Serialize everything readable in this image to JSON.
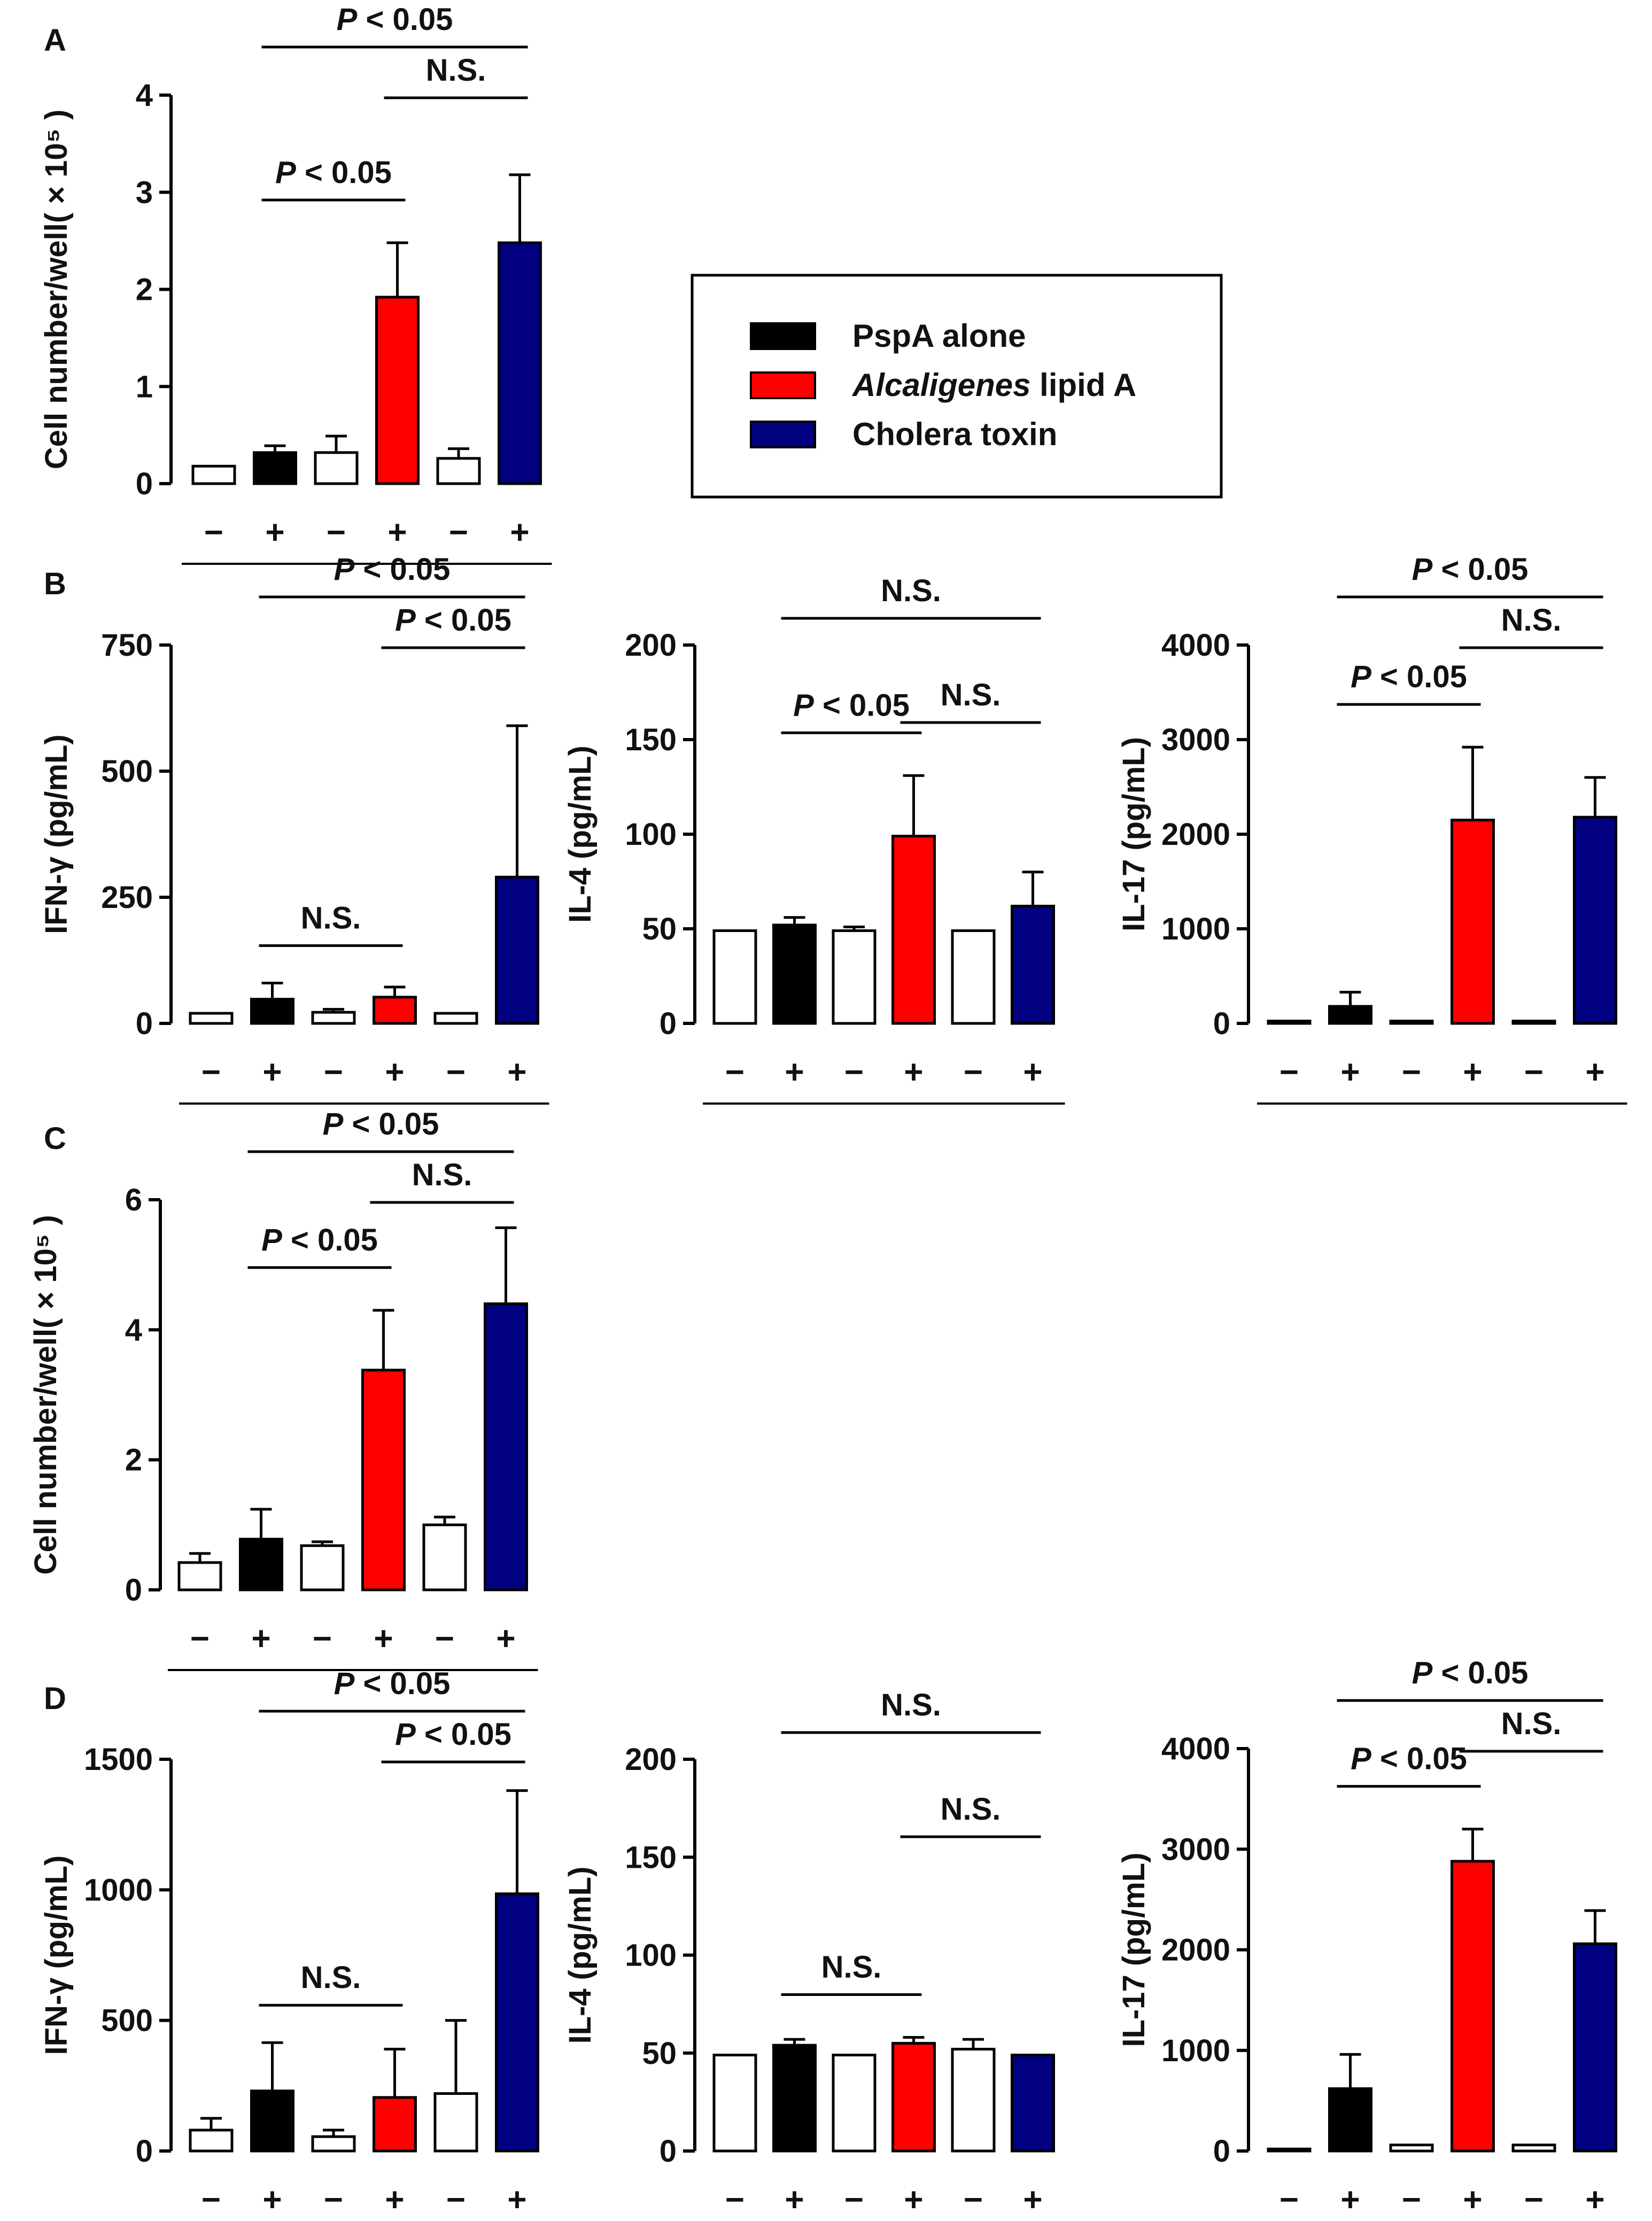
{
  "colors": {
    "control": "#ffffff",
    "PspA alone": "#000000",
    "Alcaligenes lipid A": "#ff0000",
    "Cholera toxin": "#000080"
  },
  "legend": [
    {
      "label": "PspA  alone",
      "color_key": "PspA alone",
      "italic_part": ""
    },
    {
      "label": " lipid A",
      "color_key": "Alcaligenes lipid A",
      "italic_part": "Alcaligenes"
    },
    {
      "label": "Cholera toxin",
      "color_key": "Cholera toxin",
      "italic_part": ""
    }
  ],
  "chart_data": [
    {
      "panel": "A",
      "type": "bar",
      "ylabel": "Cell number/well( × 10⁵ )",
      "ylim": [
        0,
        4
      ],
      "yticks": [
        0,
        1,
        2,
        3,
        4
      ],
      "categories": [
        "−",
        "+",
        "−",
        "+",
        "−",
        "+"
      ],
      "series": [
        "control",
        "PspA alone",
        "control",
        "Alcaligenes lipid A",
        "control",
        "Cholera toxin"
      ],
      "values": [
        0.18,
        0.32,
        0.32,
        1.92,
        0.26,
        2.48
      ],
      "errors": [
        0.0,
        0.07,
        0.17,
        0.56,
        0.1,
        0.7
      ],
      "significance": [
        {
          "from": 1,
          "to": 5,
          "text": "P < 0.05"
        },
        {
          "from": 3,
          "to": 5,
          "text": "N.S."
        },
        {
          "from": 1,
          "to": 3,
          "text": "P < 0.05"
        }
      ]
    },
    {
      "panel": "B",
      "type": "bar",
      "ylabel": "IFN-γ (pg/mL)",
      "ylim": [
        0,
        750
      ],
      "yticks": [
        0,
        250,
        500,
        750
      ],
      "categories": [
        "−",
        "+",
        "−",
        "+",
        "−",
        "+"
      ],
      "series": [
        "control",
        "PspA alone",
        "control",
        "Alcaligenes lipid A",
        "control",
        "Cholera toxin"
      ],
      "values": [
        20,
        48,
        22,
        52,
        20,
        290
      ],
      "errors": [
        0,
        32,
        6,
        20,
        0,
        300
      ],
      "significance": [
        {
          "from": 1,
          "to": 5,
          "text": "P < 0.05"
        },
        {
          "from": 3,
          "to": 5,
          "text": "P < 0.05"
        },
        {
          "from": 1,
          "to": 3,
          "text": "N.S."
        }
      ]
    },
    {
      "panel": "",
      "type": "bar",
      "ylabel": "IL-4 (pg/mL)",
      "ylim": [
        0,
        200
      ],
      "yticks": [
        0,
        50,
        100,
        150,
        200
      ],
      "categories": [
        "−",
        "+",
        "−",
        "+",
        "−",
        "+"
      ],
      "series": [
        "control",
        "PspA alone",
        "control",
        "Alcaligenes lipid A",
        "control",
        "Cholera toxin"
      ],
      "values": [
        49,
        52,
        49,
        99,
        49,
        62
      ],
      "errors": [
        0,
        4,
        2,
        32,
        0,
        18
      ],
      "significance": [
        {
          "from": 1,
          "to": 5,
          "text": "N.S."
        },
        {
          "from": 3,
          "to": 5,
          "text": "N.S."
        },
        {
          "from": 1,
          "to": 3,
          "text": "P < 0.05"
        }
      ]
    },
    {
      "panel": "",
      "type": "bar",
      "ylabel": "IL-17 (pg/mL)",
      "ylim": [
        0,
        4000
      ],
      "yticks": [
        0,
        1000,
        2000,
        3000,
        4000
      ],
      "categories": [
        "−",
        "+",
        "−",
        "+",
        "−",
        "+"
      ],
      "series": [
        "control",
        "PspA alone",
        "control",
        "Alcaligenes lipid A",
        "control",
        "Cholera toxin"
      ],
      "values": [
        25,
        180,
        25,
        2150,
        25,
        2180
      ],
      "errors": [
        0,
        150,
        0,
        770,
        0,
        420
      ],
      "significance": [
        {
          "from": 1,
          "to": 5,
          "text": "P < 0.05"
        },
        {
          "from": 3,
          "to": 5,
          "text": "N.S."
        },
        {
          "from": 1,
          "to": 3,
          "text": "P < 0.05"
        }
      ]
    },
    {
      "panel": "C",
      "type": "bar",
      "ylabel": "Cell number/well( × 10⁵ )",
      "ylim": [
        0,
        6
      ],
      "yticks": [
        0,
        2,
        4,
        6
      ],
      "categories": [
        "−",
        "+",
        "−",
        "+",
        "−",
        "+"
      ],
      "series": [
        "control",
        "PspA alone",
        "control",
        "Alcaligenes lipid A",
        "control",
        "Cholera toxin"
      ],
      "values": [
        0.42,
        0.78,
        0.68,
        3.38,
        1.0,
        4.4
      ],
      "errors": [
        0.14,
        0.46,
        0.06,
        0.92,
        0.12,
        1.17
      ],
      "significance": [
        {
          "from": 1,
          "to": 5,
          "text": "P < 0.05"
        },
        {
          "from": 3,
          "to": 5,
          "text": "N.S."
        },
        {
          "from": 1,
          "to": 3,
          "text": "P < 0.05"
        }
      ]
    },
    {
      "panel": "D",
      "type": "bar",
      "ylabel": "IFN-γ (pg/mL)",
      "ylim": [
        0,
        1500
      ],
      "yticks": [
        0,
        500,
        1000,
        1500
      ],
      "categories": [
        "−",
        "+",
        "−",
        "+",
        "−",
        "+"
      ],
      "series": [
        "control",
        "PspA alone",
        "control",
        "Alcaligenes lipid A",
        "control",
        "Cholera toxin"
      ],
      "values": [
        80,
        230,
        55,
        205,
        220,
        985
      ],
      "errors": [
        45,
        185,
        25,
        185,
        280,
        395
      ],
      "significance": [
        {
          "from": 1,
          "to": 5,
          "text": "P < 0.05"
        },
        {
          "from": 3,
          "to": 5,
          "text": "P < 0.05"
        },
        {
          "from": 1,
          "to": 3,
          "text": "N.S."
        }
      ]
    },
    {
      "panel": "",
      "type": "bar",
      "ylabel": "IL-4 (pg/mL)",
      "ylim": [
        0,
        200
      ],
      "yticks": [
        0,
        50,
        100,
        150,
        200
      ],
      "categories": [
        "−",
        "+",
        "−",
        "+",
        "−",
        "+"
      ],
      "series": [
        "control",
        "PspA alone",
        "control",
        "Alcaligenes lipid A",
        "control",
        "Cholera toxin"
      ],
      "values": [
        49,
        54,
        49,
        55,
        52,
        49
      ],
      "errors": [
        0,
        3,
        0,
        3,
        5,
        0
      ],
      "significance": [
        {
          "from": 1,
          "to": 5,
          "text": "N.S."
        },
        {
          "from": 3,
          "to": 5,
          "text": "N.S."
        },
        {
          "from": 1,
          "to": 3,
          "text": "N.S."
        }
      ]
    },
    {
      "panel": "",
      "type": "bar",
      "ylabel": "IL-17 (pg/mL)",
      "ylim": [
        0,
        4000
      ],
      "yticks": [
        0,
        1000,
        2000,
        3000,
        4000
      ],
      "categories": [
        "−",
        "+",
        "−",
        "+",
        "−",
        "+"
      ],
      "series": [
        "control",
        "PspA alone",
        "control",
        "Alcaligenes lipid A",
        "control",
        "Cholera toxin"
      ],
      "values": [
        20,
        620,
        60,
        2880,
        60,
        2060
      ],
      "errors": [
        0,
        340,
        0,
        320,
        0,
        330
      ],
      "significance": [
        {
          "from": 1,
          "to": 5,
          "text": "P < 0.05"
        },
        {
          "from": 3,
          "to": 5,
          "text": "N.S."
        },
        {
          "from": 1,
          "to": 3,
          "text": "P < 0.05"
        }
      ]
    }
  ]
}
